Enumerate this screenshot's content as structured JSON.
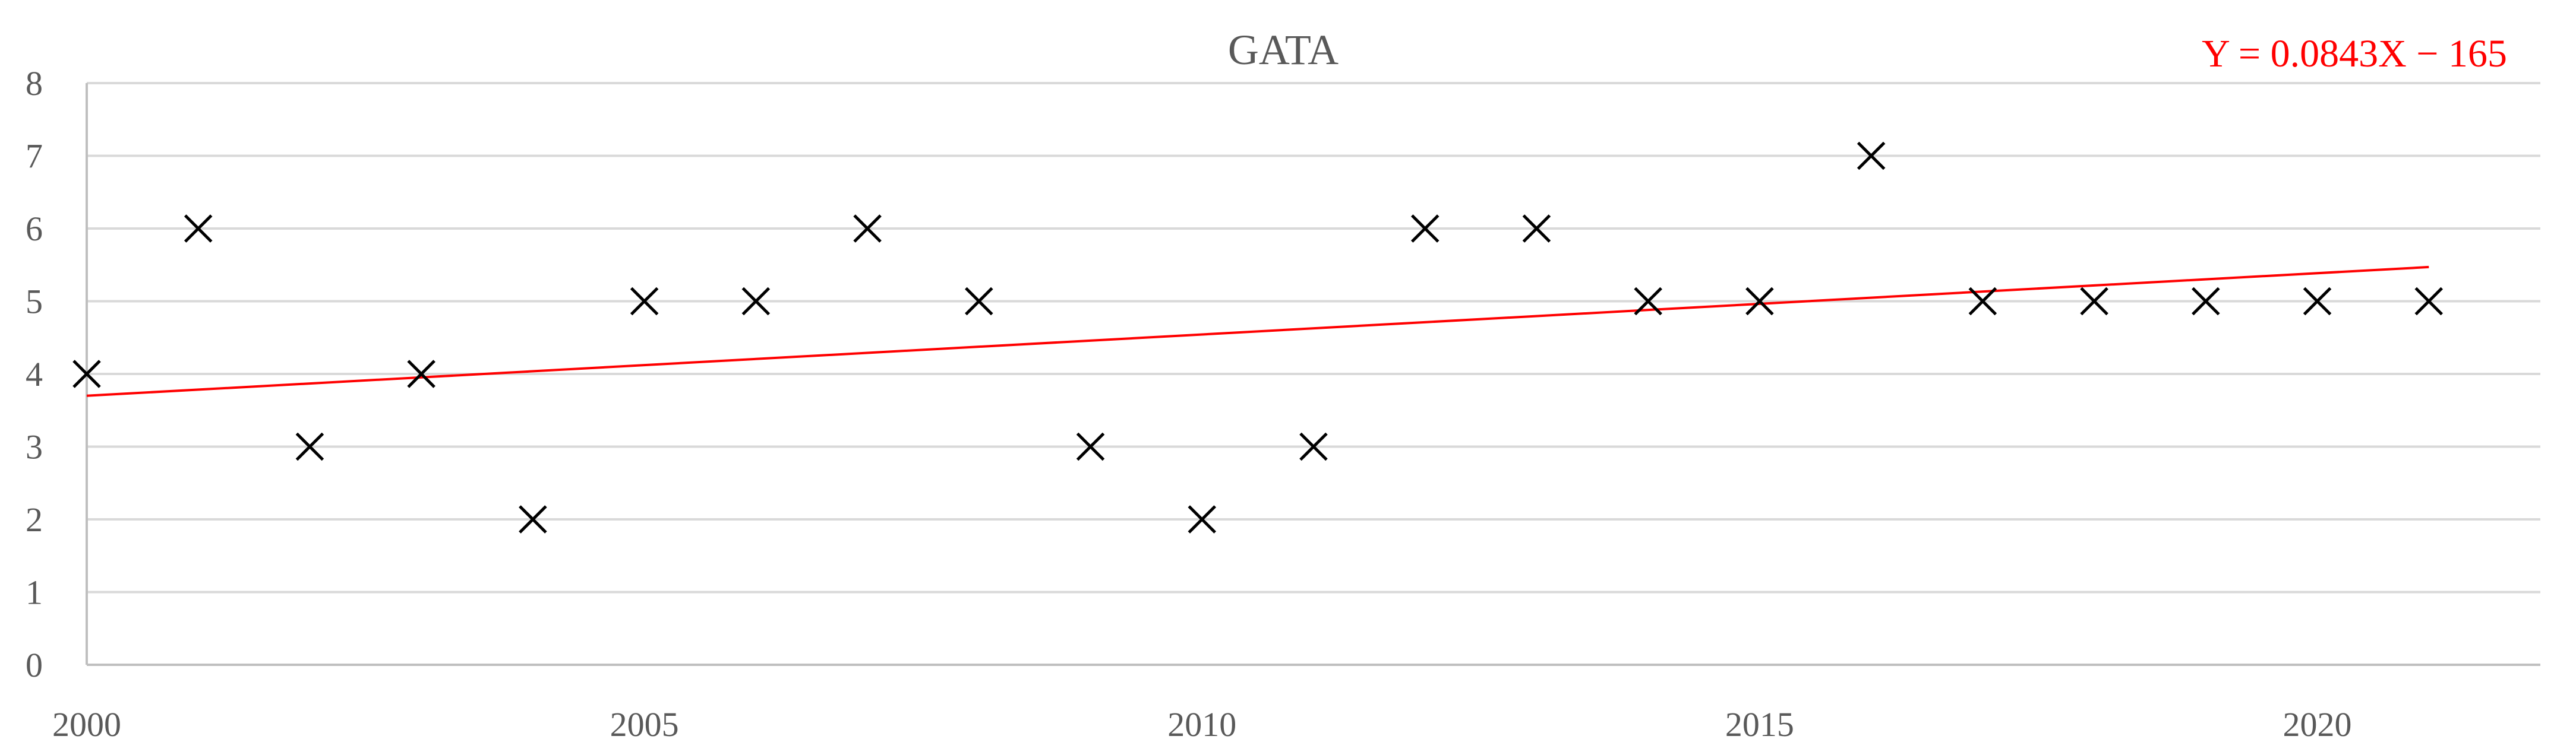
{
  "chart_data": {
    "type": "scatter",
    "title": "GATA",
    "xlabel": "",
    "ylabel": "",
    "xlim": [
      2000,
      2022
    ],
    "ylim": [
      0,
      8
    ],
    "xticks": [
      2000,
      2005,
      2010,
      2015,
      2020
    ],
    "yticks": [
      0,
      1,
      2,
      3,
      4,
      5,
      6,
      7,
      8
    ],
    "grid": "horizontal",
    "legend": "none",
    "marker": "x",
    "series": [
      {
        "x": [
          2000,
          2001,
          2002,
          2003,
          2004,
          2005,
          2006,
          2007,
          2008,
          2009,
          2010,
          2011,
          2012,
          2013,
          2014,
          2015,
          2016,
          2017,
          2018,
          2019,
          2020,
          2021
        ],
        "y": [
          4,
          6,
          3,
          4,
          2,
          5,
          5,
          6,
          5,
          3,
          2,
          3,
          6,
          6,
          5,
          5,
          7,
          5,
          5,
          5,
          5,
          5
        ]
      }
    ],
    "trendline": {
      "equation_label": "Y = 0.0843X − 165",
      "x_range": [
        2000,
        2021
      ],
      "y_range": [
        3.7,
        5.47
      ]
    },
    "colors": {
      "marker": "#000000",
      "trendline": "#ff0000",
      "equation": "#ff0000",
      "grid": "#d9d9d9",
      "axis": "#bfbfbf",
      "text": "#595959"
    }
  }
}
